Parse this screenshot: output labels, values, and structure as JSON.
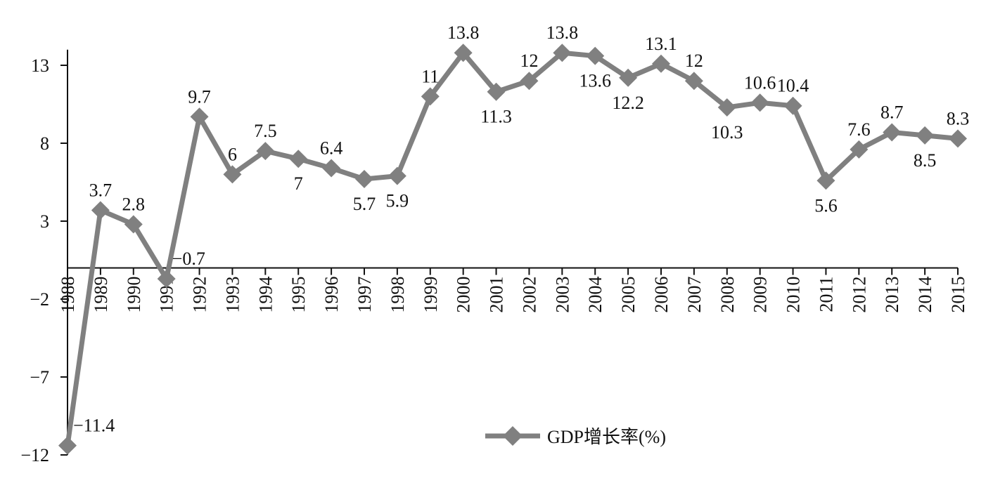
{
  "chart_data": {
    "type": "line",
    "title": "",
    "xlabel": "",
    "ylabel": "",
    "categories": [
      "1988",
      "1989",
      "1990",
      "1991",
      "1992",
      "1993",
      "1994",
      "1995",
      "1996",
      "1997",
      "1998",
      "1999",
      "2000",
      "2001",
      "2002",
      "2003",
      "2004",
      "2005",
      "2006",
      "2007",
      "2008",
      "2009",
      "2010",
      "2011",
      "2012",
      "2013",
      "2014",
      "2015"
    ],
    "series": [
      {
        "name": "GDP增长率(%)",
        "values": [
          -11.4,
          3.7,
          2.8,
          -0.7,
          9.7,
          6,
          7.5,
          7,
          6.4,
          5.7,
          5.9,
          11,
          13.8,
          11.3,
          12,
          13.8,
          13.6,
          12.2,
          13.1,
          12,
          10.3,
          10.6,
          10.4,
          5.6,
          7.6,
          8.7,
          8.5,
          8.3
        ],
        "labels": [
          "−11.4",
          "3.7",
          "2.8",
          "−0.7",
          "9.7",
          "6",
          "7.5",
          "7",
          "6.4",
          "5.7",
          "5.9",
          "11",
          "13.8",
          "11.3",
          "12",
          "13.8",
          "13.6",
          "12.2",
          "13.1",
          "12",
          "10.3",
          "10.6",
          "10.4",
          "5.6",
          "7.6",
          "8.7",
          "8.5",
          "8.3"
        ],
        "label_pos": [
          "right",
          "above",
          "above",
          "right",
          "above",
          "above",
          "above",
          "below",
          "above",
          "below",
          "below",
          "above",
          "above",
          "below",
          "above",
          "above",
          "below",
          "below",
          "above",
          "above",
          "below",
          "above",
          "above",
          "below",
          "above",
          "above",
          "below",
          "above"
        ],
        "color": "#808080",
        "marker": "diamond"
      }
    ],
    "yticks": [
      13,
      8,
      3,
      -2,
      -7,
      -12
    ],
    "ytick_labels": [
      "13",
      "8",
      "3",
      "−2",
      "−7",
      "−12"
    ],
    "ylim": [
      -12,
      14
    ],
    "grid": false,
    "legend_position": "bottom-center"
  }
}
